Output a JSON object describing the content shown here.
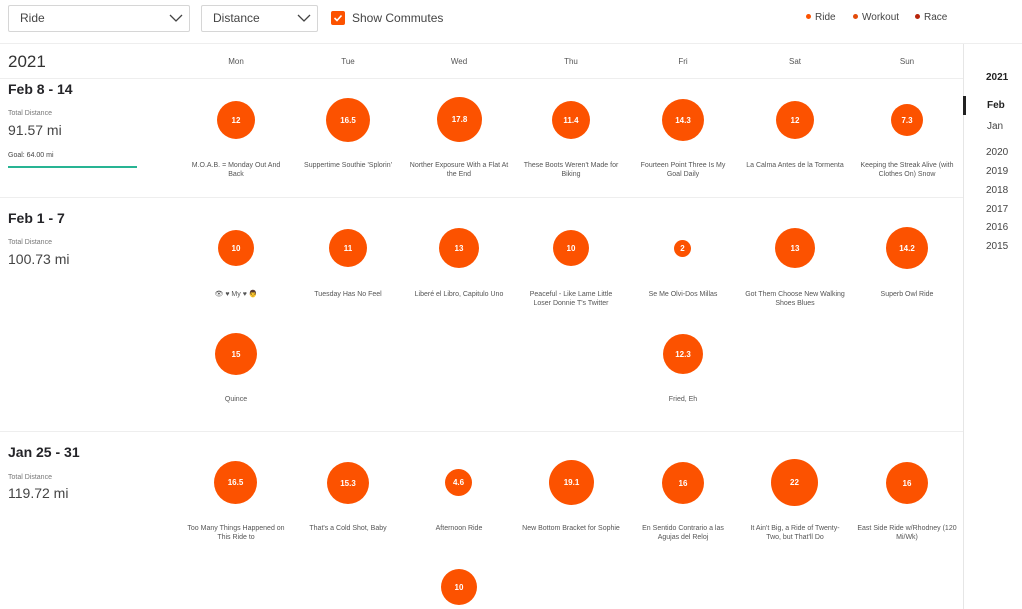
{
  "filters": {
    "sport_select": "Ride",
    "metric_select": "Distance",
    "commutes_label": "Show Commutes",
    "commutes_checked": true
  },
  "legend": [
    {
      "label": "Ride",
      "color": "#fc5200"
    },
    {
      "label": "Workout",
      "color": "#e34b0a"
    },
    {
      "label": "Race",
      "color": "#b8250b"
    }
  ],
  "calendar": {
    "year": "2021",
    "days": [
      "Mon",
      "Tue",
      "Wed",
      "Thu",
      "Fri",
      "Sat",
      "Sun"
    ]
  },
  "weeks": [
    {
      "title": "Feb 8 - 14",
      "total_label": "Total Distance",
      "total_value": "91.57 mi",
      "goal_text": "Goal: 64.00 mi",
      "activities": [
        {
          "value": "12",
          "name": "M.O.A.B. = Monday Out And Back"
        },
        {
          "value": "16.5",
          "name": "Suppertime Southie 'Splorin'"
        },
        {
          "value": "17.8",
          "name": "Norther Exposure With a Flat At the End"
        },
        {
          "value": "11.4",
          "name": "These Boots Weren't Made for Biking"
        },
        {
          "value": "14.3",
          "name": "Fourteen Point Three Is My Goal Daily"
        },
        {
          "value": "12",
          "name": "La Calma Antes de la Tormenta"
        },
        {
          "value": "7.3",
          "name": "Keeping the Streak Alive (with Clothes On) Snow"
        }
      ]
    },
    {
      "title": "Feb 1 - 7",
      "total_label": "Total Distance",
      "total_value": "100.73 mi",
      "activities": [
        {
          "value": "10",
          "name": "👁 ♥ My ♥ 👨"
        },
        {
          "value": "11",
          "name": "Tuesday Has No Feel"
        },
        {
          "value": "13",
          "name": "Liberé el Libro, Capitulo Uno"
        },
        {
          "value": "10",
          "name": "Peaceful - Like Lame Little Loser Donnie T's Twitter"
        },
        {
          "value": "2",
          "name": "Se Me Olvi-Dos Millas"
        },
        {
          "value": "13",
          "name": "Got Them Choose New Walking Shoes Blues"
        },
        {
          "value": "14.2",
          "name": "Superb Owl Ride"
        },
        {
          "value": "15",
          "name": "Quince"
        },
        {
          "value": "12.3",
          "name": "Fried, Eh"
        }
      ]
    },
    {
      "title": "Jan 25 - 31",
      "total_label": "Total Distance",
      "total_value": "119.72 mi",
      "activities": [
        {
          "value": "16.5",
          "name": "Too Many Things Happened on This Ride to"
        },
        {
          "value": "15.3",
          "name": "That's a Cold Shot, Baby"
        },
        {
          "value": "4.6",
          "name": "Afternoon Ride"
        },
        {
          "value": "19.1",
          "name": "New Bottom Bracket for Sophie"
        },
        {
          "value": "16",
          "name": "En Sentido Contrario a las Agujas del Reloj"
        },
        {
          "value": "22",
          "name": "It Ain't Big, a Ride of Twenty-Two, but That'll Do"
        },
        {
          "value": "16",
          "name": "East Side Ride w/Rhodney (120 Mi/Wk)"
        },
        {
          "value": "10",
          "name": ""
        }
      ]
    }
  ],
  "nav": {
    "current_year": "2021",
    "months": [
      "Feb",
      "Jan"
    ],
    "years": [
      "2020",
      "2019",
      "2018",
      "2017",
      "2016",
      "2015"
    ]
  }
}
